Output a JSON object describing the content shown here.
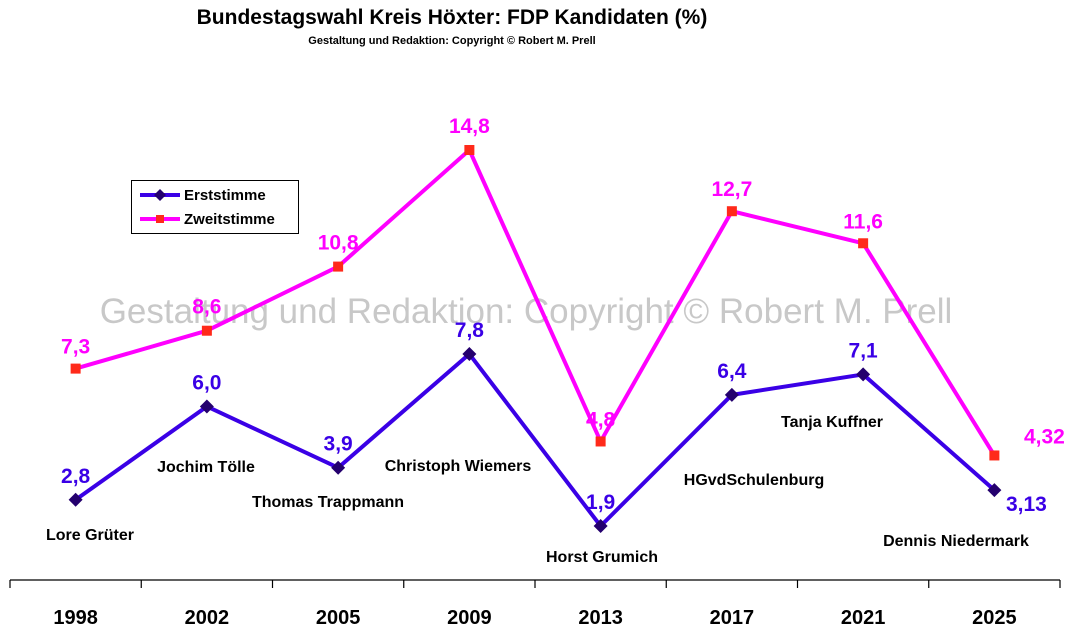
{
  "title": "Bundestagswahl Kreis Höxter: FDP Kandidaten (%)",
  "subtitle": "Gestaltung und Redaktion: Copyright © Robert M. Prell",
  "watermark": "Gestaltung und Redaktion: Copyright © Robert M. Prell",
  "colors": {
    "erststimme": "#3a00e6",
    "zweitstimme": "#ff00ff",
    "erst_marker": "#24006e",
    "zweit_marker": "#ff2a1a"
  },
  "chart_data": {
    "type": "line",
    "categories": [
      "1998",
      "2002",
      "2005",
      "2009",
      "2013",
      "2017",
      "2021",
      "2025"
    ],
    "ylim": [
      0,
      16
    ],
    "grid": false,
    "legend_position": "top-left",
    "series": [
      {
        "name": "Erststimme",
        "values": [
          2.8,
          6.0,
          3.9,
          7.8,
          1.9,
          6.4,
          7.1,
          3.13
        ],
        "labels": [
          "2,8",
          "6,0",
          "3,9",
          "7,8",
          "1,9",
          "6,4",
          "7,1",
          "3,13"
        ]
      },
      {
        "name": "Zweitstimme",
        "values": [
          7.3,
          8.6,
          10.8,
          14.8,
          4.8,
          12.7,
          11.6,
          4.32
        ],
        "labels": [
          "7,3",
          "8,6",
          "10,8",
          "14,8",
          "4,8",
          "12,7",
          "11,6",
          "4,32"
        ]
      }
    ],
    "candidates": [
      "Lore Grüter",
      "Jochim Tölle",
      "Thomas Trappmann",
      "Christoph Wiemers",
      "Horst Grumich",
      "HGvdSchulenburg",
      "Tanja Kuffner",
      "Dennis Niedermark"
    ]
  }
}
